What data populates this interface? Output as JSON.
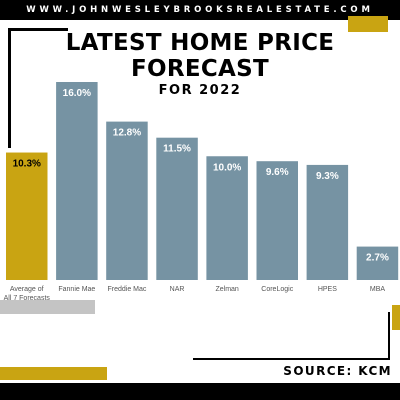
{
  "header": {
    "website": "WWW.JOHNWESLEYBROOKSREALESTATE.COM"
  },
  "title": {
    "line1": "LATEST HOME PRICE",
    "line2": "FORECAST",
    "subtitle": "FOR 2022"
  },
  "footer": {
    "source": "SOURCE: KCM"
  },
  "colors": {
    "gold": "#c9a412",
    "slate": "#7693a3",
    "black": "#000000",
    "gray": "#c4c4c4"
  },
  "chart_data": {
    "type": "bar",
    "title": "LATEST HOME PRICE FORECAST",
    "subtitle": "FOR 2022",
    "categories": [
      "Average of All 7 Forecasts",
      "Fannie Mae",
      "Freddie Mac",
      "NAR",
      "Zelman",
      "CoreLogic",
      "HPES",
      "MBA"
    ],
    "category_lines": [
      [
        "Average of",
        "All 7 Forecasts"
      ],
      [
        "Fannie Mae"
      ],
      [
        "Freddie Mac"
      ],
      [
        "NAR"
      ],
      [
        "Zelman"
      ],
      [
        "CoreLogic"
      ],
      [
        "HPES"
      ],
      [
        "MBA"
      ]
    ],
    "values": [
      10.3,
      16.0,
      12.8,
      11.5,
      10.0,
      9.6,
      9.3,
      2.7
    ],
    "value_labels": [
      "10.3%",
      "16.0%",
      "12.8%",
      "11.5%",
      "10.0%",
      "9.6%",
      "9.3%",
      "2.7%"
    ],
    "highlight_index": 0,
    "ylim": [
      0,
      16.0
    ],
    "grid": false,
    "legend": "none"
  }
}
